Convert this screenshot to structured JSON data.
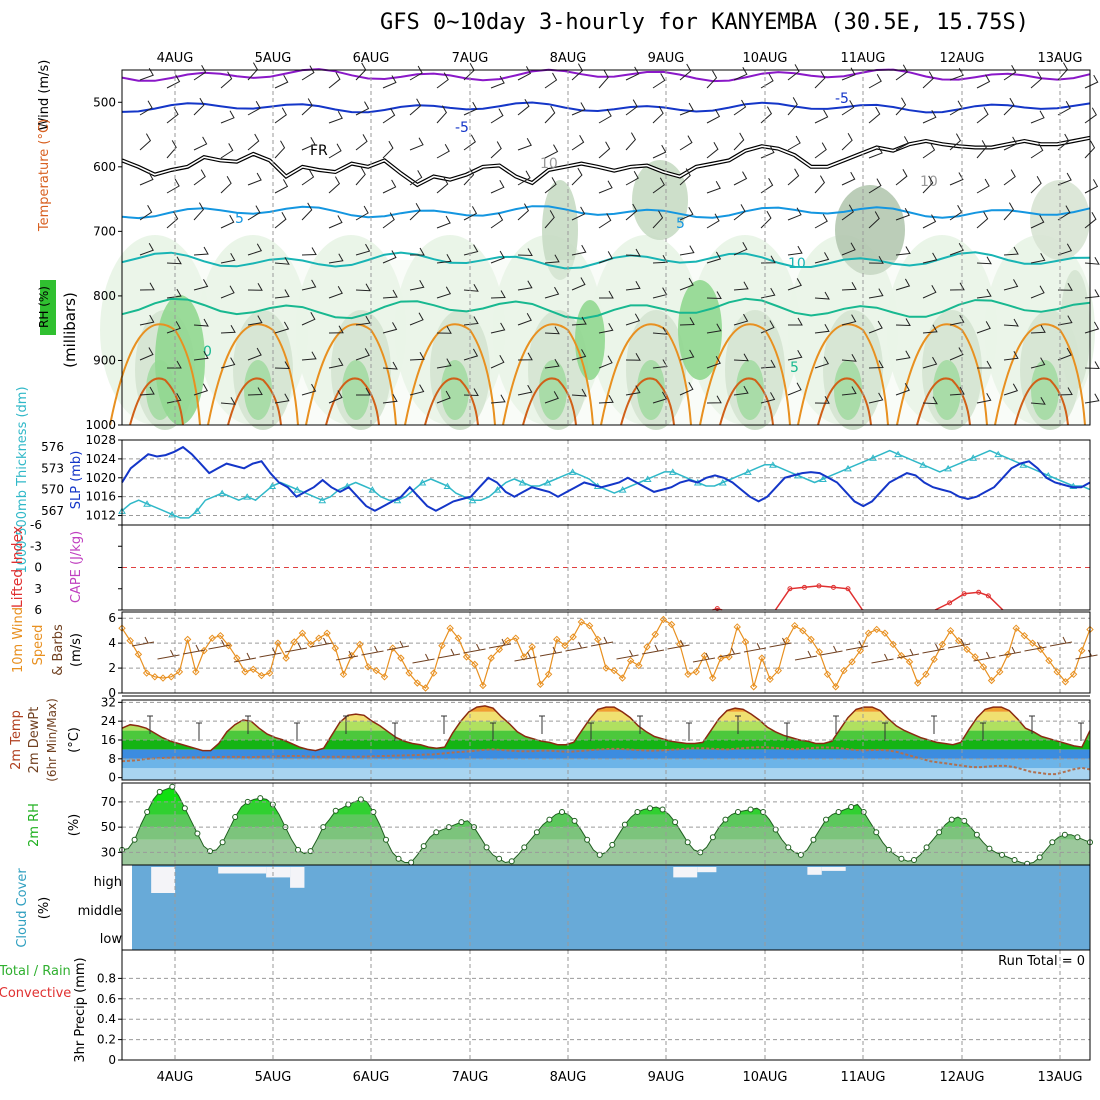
{
  "title": "GFS 0~10day 3-hourly for KANYEMBA (30.5E, 15.75S)",
  "dates": [
    "4AUG",
    "5AUG",
    "6AUG",
    "7AUG",
    "8AUG",
    "9AUG",
    "10AUG",
    "11AUG",
    "12AUG",
    "13AUG"
  ],
  "colors": {
    "bg": "#ffffff",
    "grid": "#9a9a9a",
    "blue": "#1436c8",
    "cyan": "#30b8c8",
    "orange": "#e89020",
    "brown": "#704020",
    "green": "#18c018",
    "cloud": "#68aad8"
  },
  "panels": {
    "sounding": {
      "ylabels": [
        "Wind (m/s)",
        "Temperature (°C)",
        "(millibars)",
        "RH (%)"
      ],
      "pressure_ticks": [
        "500",
        "600",
        "700",
        "800",
        "900",
        "1000"
      ],
      "pressure_range": [
        450,
        1000
      ],
      "contour_labels": [
        "-5",
        "-5",
        "FR",
        "5",
        "5",
        "10",
        "0",
        "5",
        "10",
        "10"
      ],
      "freezing_level_mb": [
        590,
        600,
        612,
        605,
        600,
        585,
        590,
        592,
        580,
        590,
        615,
        600,
        605,
        608,
        595,
        600,
        590,
        610,
        628,
        615,
        620,
        612,
        600,
        598,
        615,
        625,
        605,
        600,
        595,
        600,
        606,
        600,
        598,
        608,
        615,
        600,
        595,
        590,
        575,
        568,
        572,
        582,
        600,
        600,
        590,
        580,
        570,
        575,
        565,
        560,
        565,
        568,
        570,
        570,
        565,
        560,
        565,
        565,
        560,
        555
      ]
    },
    "thickness_slp": {
      "thickness_label": "1000-500mb Thickness (dm)",
      "slp_label": "SLP (mb)",
      "thickness_ticks": [
        "576",
        "573",
        "570",
        "567"
      ],
      "slp_ticks": [
        "1028",
        "1024",
        "1020",
        "1016",
        "1012"
      ],
      "slp_range": [
        1010,
        1028
      ],
      "slp_mb": [
        1019,
        1022,
        1023.5,
        1025,
        1024.5,
        1024.8,
        1025.5,
        1026.5,
        1025,
        1023,
        1021,
        1022,
        1023,
        1022.5,
        1022,
        1023,
        1023.5,
        1021,
        1019,
        1018,
        1016,
        1017,
        1018,
        1019.5,
        1018,
        1017,
        1018,
        1016,
        1014,
        1013,
        1014,
        1015,
        1016,
        1018,
        1016,
        1014,
        1013,
        1014,
        1015,
        1015.5,
        1016,
        1018,
        1020,
        1019,
        1017,
        1016,
        1017,
        1018,
        1017.5,
        1017,
        1016,
        1017,
        1018,
        1019,
        1018.5,
        1018,
        1018.5,
        1019,
        1020,
        1019,
        1018,
        1017,
        1017.5,
        1018,
        1019,
        1019.5,
        1019,
        1020,
        1020.5,
        1020,
        1019,
        1017.5,
        1016,
        1015,
        1016,
        1018,
        1020,
        1020.5,
        1021,
        1021.2,
        1021,
        1020,
        1019,
        1017,
        1015,
        1014,
        1015,
        1017,
        1019,
        1020,
        1021,
        1020.5,
        1019,
        1018,
        1017.5,
        1017,
        1016,
        1015.5,
        1016,
        1017,
        1018,
        1020,
        1022,
        1023,
        1023.5,
        1022,
        1020,
        1019,
        1018.5,
        1018,
        1018,
        1019
      ],
      "thickness_dm": [
        567,
        568,
        568.5,
        568,
        567.5,
        567,
        566.5,
        566,
        566,
        567,
        568.5,
        569,
        569.5,
        569,
        568.5,
        569,
        568.5,
        569.5,
        570.5,
        571,
        570.5,
        570,
        569.5,
        569,
        568.5,
        569,
        570,
        570.5,
        571,
        570.5,
        570,
        569,
        568.5,
        568.5,
        569,
        570,
        571,
        571.5,
        571,
        570.5,
        569.5,
        569,
        568.5,
        568.5,
        569,
        570,
        571,
        571.5,
        571,
        570.5,
        570.5,
        571,
        571.5,
        572,
        572.5,
        572,
        571.5,
        570.5,
        570,
        569.5,
        570,
        570.5,
        571,
        571.5,
        572,
        572.5,
        572.5,
        572,
        571.5,
        571,
        570.5,
        570.5,
        571,
        571.5,
        572,
        572.5,
        573,
        573.5,
        573.5,
        573,
        572.5,
        572,
        571.5,
        571,
        571.5,
        572,
        572.5,
        573,
        573.5,
        574,
        574.5,
        575,
        575.5,
        575,
        574.5,
        574,
        573.5,
        573,
        572.5,
        573,
        573.5,
        574,
        574.5,
        575,
        575.5,
        575,
        574.5,
        574,
        573.5,
        573,
        572.5,
        572,
        571.5,
        571,
        570.5,
        570.5,
        570
      ]
    },
    "cape": {
      "lifted_label": "Lifted Index",
      "cape_label": "CAPE (J/kg)",
      "li_ticks": [
        "-6",
        "-3",
        "0",
        "3",
        "6"
      ],
      "li_range": [
        -6,
        6
      ],
      "li_segments": [
        [
          [
            0.61,
            6
          ],
          [
            0.615,
            5.8
          ],
          [
            0.62,
            6
          ]
        ],
        [
          [
            0.675,
            6
          ],
          [
            0.69,
            3
          ],
          [
            0.705,
            2.8
          ],
          [
            0.72,
            2.6
          ],
          [
            0.735,
            2.8
          ],
          [
            0.75,
            3
          ],
          [
            0.765,
            6
          ]
        ],
        [
          [
            0.84,
            6
          ],
          [
            0.855,
            5
          ],
          [
            0.87,
            3.7
          ],
          [
            0.885,
            3.5
          ],
          [
            0.895,
            4
          ],
          [
            0.91,
            6
          ]
        ]
      ]
    },
    "wind10m": {
      "label": "10m Wind Speed & Barbs (m/s)",
      "ticks": [
        "6",
        "4",
        "2",
        "0"
      ],
      "range": [
        0,
        6.5
      ],
      "speed_ms": [
        5.2,
        4.2,
        3.1,
        1.6,
        1.3,
        1.2,
        1.3,
        1.7,
        4.3,
        1.7,
        3.4,
        4.4,
        4.6,
        3.8,
        2.8,
        1.7,
        1.9,
        1.4,
        1.6,
        4.0,
        2.8,
        4.1,
        4.8,
        3.9,
        4.4,
        4.8,
        3.6,
        1.5,
        3.0,
        3.9,
        2.1,
        1.8,
        1.3,
        3.6,
        2.8,
        1.6,
        0.8,
        0.4,
        1.6,
        3.8,
        5.2,
        4.4,
        2.9,
        2.3,
        0.6,
        2.8,
        3.5,
        4.2,
        4.4,
        2.9,
        3.7,
        0.7,
        1.5,
        4.3,
        3.8,
        4.5,
        5.7,
        5.4,
        4.3,
        2.0,
        1.8,
        1.2,
        2.6,
        2.2,
        3.7,
        4.7,
        5.9,
        5.5,
        3.9,
        1.5,
        1.7,
        3.0,
        1.2,
        2.8,
        2.9,
        5.3,
        4.1,
        0.5,
        2.8,
        1.1,
        1.8,
        4.2,
        5.4,
        5.0,
        4.3,
        3.3,
        1.5,
        0.5,
        1.8,
        2.5,
        3.4,
        4.8,
        5.1,
        4.8,
        3.9,
        3.0,
        2.5,
        0.8,
        1.5,
        2.7,
        3.9,
        5.0,
        4.2,
        3.5,
        2.9,
        2.1,
        1.0,
        1.7,
        3.1,
        5.2,
        4.6,
        4.0,
        3.5,
        2.6,
        1.7,
        0.9,
        1.5,
        3.4,
        5.1
      ]
    },
    "temp2m": {
      "label": "2m Temp 2m DewPt (6hr Min/Max) (°C)",
      "ticks": [
        "32",
        "24",
        "16",
        "8",
        "0"
      ],
      "range": [
        -1,
        33
      ],
      "temp_c": [
        21,
        22.5,
        22,
        21,
        19,
        17,
        15.5,
        14.5,
        13.5,
        12.5,
        11.5,
        11.5,
        14.5,
        19.5,
        22.5,
        24.5,
        24,
        21,
        18.5,
        17,
        16,
        14.5,
        13,
        12,
        11.5,
        12.5,
        18,
        23.5,
        26.5,
        27,
        26.5,
        24,
        22,
        19.5,
        17,
        15.5,
        14.5,
        14,
        13,
        12.5,
        13,
        19,
        24,
        28,
        30,
        30.5,
        29.5,
        26,
        23,
        19.5,
        17.5,
        16.5,
        15.5,
        15,
        14,
        14,
        15,
        20,
        25,
        29,
        30,
        30,
        28,
        25.5,
        22,
        19.5,
        17.5,
        16.5,
        15.5,
        15,
        14.5,
        14.5,
        15,
        20,
        25,
        28.5,
        29.5,
        29,
        27,
        24.5,
        21.5,
        19.5,
        18,
        17,
        16,
        15.5,
        14.5,
        14.5,
        15.5,
        20.5,
        25.5,
        29,
        30,
        30,
        28.5,
        25,
        22,
        20,
        18.5,
        17,
        16,
        15,
        14.5,
        14,
        15,
        20.5,
        25.5,
        29,
        30,
        30,
        28.5,
        25,
        21,
        19.5,
        17.5,
        16.5,
        15.5,
        14.5,
        13.5,
        13,
        20
      ],
      "dew_c": [
        7,
        7.2,
        7.5,
        8,
        8.2,
        8.4,
        8.5,
        8.5,
        8.6,
        8.6,
        8.7,
        8.7,
        8.8,
        8.8,
        8.8,
        8.7,
        8.8,
        8.9,
        9,
        9.1,
        9.2,
        9.2,
        9,
        8.9,
        8.9,
        8.9,
        8.9,
        8.9,
        8.9,
        9,
        9.1,
        9.2,
        9.3,
        9.4,
        9.5,
        9.6,
        9.8,
        9.9,
        10.2,
        10.6,
        10.9,
        11.1,
        11.4,
        11.8,
        12,
        11.8,
        11.5,
        11.3,
        11.2,
        11.3,
        11.5,
        11.4,
        11.2,
        11,
        11.2,
        11.5,
        11.8,
        12,
        12.2,
        12.2,
        12,
        11.8,
        11.6,
        11.5,
        11.6,
        11.8,
        12,
        12.3,
        12.5,
        12.5,
        12.3,
        12.1,
        12,
        12.3,
        12.6,
        12.8,
        12.9,
        12.8,
        12.5,
        12.2,
        12,
        12.3,
        12.6,
        12.8,
        12.8,
        12.6,
        12.2,
        11.8,
        11.6,
        11.7,
        11.8,
        11.6,
        11,
        10,
        9,
        8,
        7,
        6.5,
        6,
        5.5,
        5,
        4.5,
        4.5,
        4.8,
        5,
        5,
        4.5,
        3.5,
        2.5,
        2,
        1.5,
        1.5,
        2.5,
        3.5,
        4.2,
        3.5
      ]
    },
    "rh2m": {
      "label": "2m RH (%)",
      "ticks": [
        "70",
        "50",
        "30"
      ],
      "range": [
        20,
        85
      ],
      "rh_pct": [
        32,
        33,
        40,
        52,
        62,
        72,
        78,
        80,
        82,
        75,
        65,
        55,
        45,
        35,
        31,
        32,
        38,
        48,
        58,
        66,
        70,
        72,
        73,
        72,
        68,
        60,
        50,
        40,
        32,
        29,
        31,
        40,
        50,
        56,
        63,
        65,
        68,
        70,
        72,
        70,
        62,
        52,
        40,
        30,
        25,
        22,
        22,
        28,
        35,
        42,
        46,
        48,
        50,
        52,
        54,
        55,
        50,
        42,
        34,
        28,
        25,
        22,
        23,
        28,
        34,
        40,
        46,
        52,
        56,
        60,
        62,
        60,
        55,
        48,
        40,
        32,
        28,
        30,
        36,
        44,
        52,
        58,
        62,
        64,
        65,
        66,
        64,
        60,
        54,
        46,
        38,
        32,
        30,
        34,
        42,
        50,
        56,
        60,
        62,
        63,
        64,
        65,
        62,
        56,
        48,
        40,
        34,
        30,
        28,
        32,
        40,
        48,
        56,
        60,
        62,
        64,
        66,
        68,
        62,
        54,
        46,
        38,
        32,
        28,
        25,
        23,
        24,
        28,
        34,
        40,
        46,
        52,
        56,
        58,
        55,
        50,
        44,
        38,
        33,
        30,
        28,
        26,
        24,
        22,
        21,
        22,
        26,
        32,
        38,
        42,
        44,
        44,
        42,
        40,
        38
      ]
    },
    "cloud": {
      "label": "Cloud Cover (%)",
      "levels": [
        "high",
        "middle",
        "low"
      ],
      "high_gaps": [
        [
          0.02,
          0.045,
          1.0
        ],
        [
          0.09,
          0.14,
          0.25
        ],
        [
          0.14,
          0.165,
          0.4
        ],
        [
          0.165,
          0.18,
          0.8
        ],
        [
          0.565,
          0.59,
          0.4
        ],
        [
          0.59,
          0.61,
          0.2
        ],
        [
          0.705,
          0.72,
          0.3
        ],
        [
          0.72,
          0.745,
          0.15
        ]
      ]
    },
    "precip": {
      "label": "3hr Precip (mm)",
      "series_total": "Total / Rain",
      "series_conv": "Convective",
      "ticks": [
        "0.8",
        "0.6",
        "0.4",
        "0.2",
        "0"
      ],
      "range": [
        0,
        1
      ],
      "run_total": "Run Total = 0"
    }
  }
}
